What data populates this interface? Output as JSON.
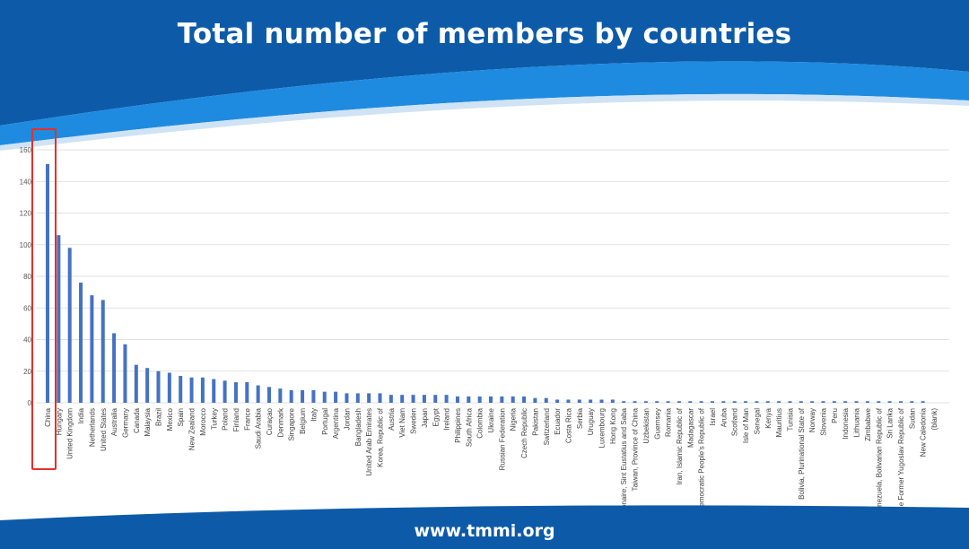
{
  "page": {
    "title": "Total number of members by countries",
    "footer_url": "www.tmmi.org",
    "colors": {
      "header_dark": "#0d5ba8",
      "header_light": "#1e8be0",
      "bar": "#4472c4",
      "highlight": "#e5302a"
    }
  },
  "chart_data": {
    "type": "bar",
    "title": "",
    "xlabel": "",
    "ylabel": "",
    "ylim": [
      0,
      160
    ],
    "yticks": [
      0,
      20,
      40,
      60,
      80,
      100,
      120,
      140,
      160
    ],
    "grid": true,
    "legend": "none",
    "highlighted_category": "China",
    "categories": [
      "China",
      "Hungary",
      "United Kingdom",
      "India",
      "Netherlands",
      "United States",
      "Australia",
      "Germany",
      "Canada",
      "Malaysia",
      "Brazil",
      "Mexico",
      "Spain",
      "New Zealand",
      "Morocco",
      "Turkey",
      "Poland",
      "Finland",
      "France",
      "Saudi Arabia",
      "Curaçao",
      "Denmark",
      "Singapore",
      "Belgium",
      "Italy",
      "Portugal",
      "Argentina",
      "Jordan",
      "Bangladesh",
      "United Arab Emirates",
      "Korea, Republic of",
      "Austria",
      "Viet Nam",
      "Sweden",
      "Japan",
      "Egypt",
      "Ireland",
      "Philippines",
      "South Africa",
      "Colombia",
      "Ukraine",
      "Russian Federation",
      "Nigeria",
      "Czech Republic",
      "Pakistan",
      "Switzerland",
      "Ecuador",
      "Costa Rica",
      "Serbia",
      "Uruguay",
      "Luxembourg",
      "Hong Kong",
      "Bonaire, Sint Eustatius and Saba",
      "Taiwan, Province of China",
      "Uzbekistan",
      "Guernsey",
      "Romania",
      "Iran, Islamic Republic of",
      "Madagascar",
      "Korea, Democratic People's Republic of",
      "Israel",
      "Aruba",
      "Scotland",
      "Isle of Man",
      "Senegal",
      "Kenya",
      "Mauritius",
      "Tunisia",
      "Bolivia, Plurinational State of",
      "Norway",
      "Slovenia",
      "Peru",
      "Indonesia",
      "Lithuania",
      "Zimbabwe",
      "Venezuela, Bolivarian Republic of",
      "Sri Lanka",
      "Macedonia, The Former Yugoslav Republic of",
      "Sudan",
      "New Caledonia",
      "(blank)"
    ],
    "values": [
      151,
      106,
      98,
      76,
      68,
      65,
      44,
      37,
      24,
      22,
      20,
      19,
      17,
      16,
      16,
      15,
      14,
      13,
      13,
      11,
      10,
      9,
      8,
      8,
      8,
      7,
      7,
      6,
      6,
      6,
      6,
      5,
      5,
      5,
      5,
      5,
      5,
      4,
      4,
      4,
      4,
      4,
      4,
      4,
      3,
      3,
      2,
      2,
      2,
      2,
      2,
      2,
      1,
      1,
      1,
      1,
      1,
      1,
      1,
      1,
      1,
      1,
      1,
      1,
      1,
      1,
      1,
      1,
      1,
      1,
      1,
      1,
      1,
      1,
      1,
      1,
      1,
      1,
      1,
      1,
      0
    ]
  }
}
